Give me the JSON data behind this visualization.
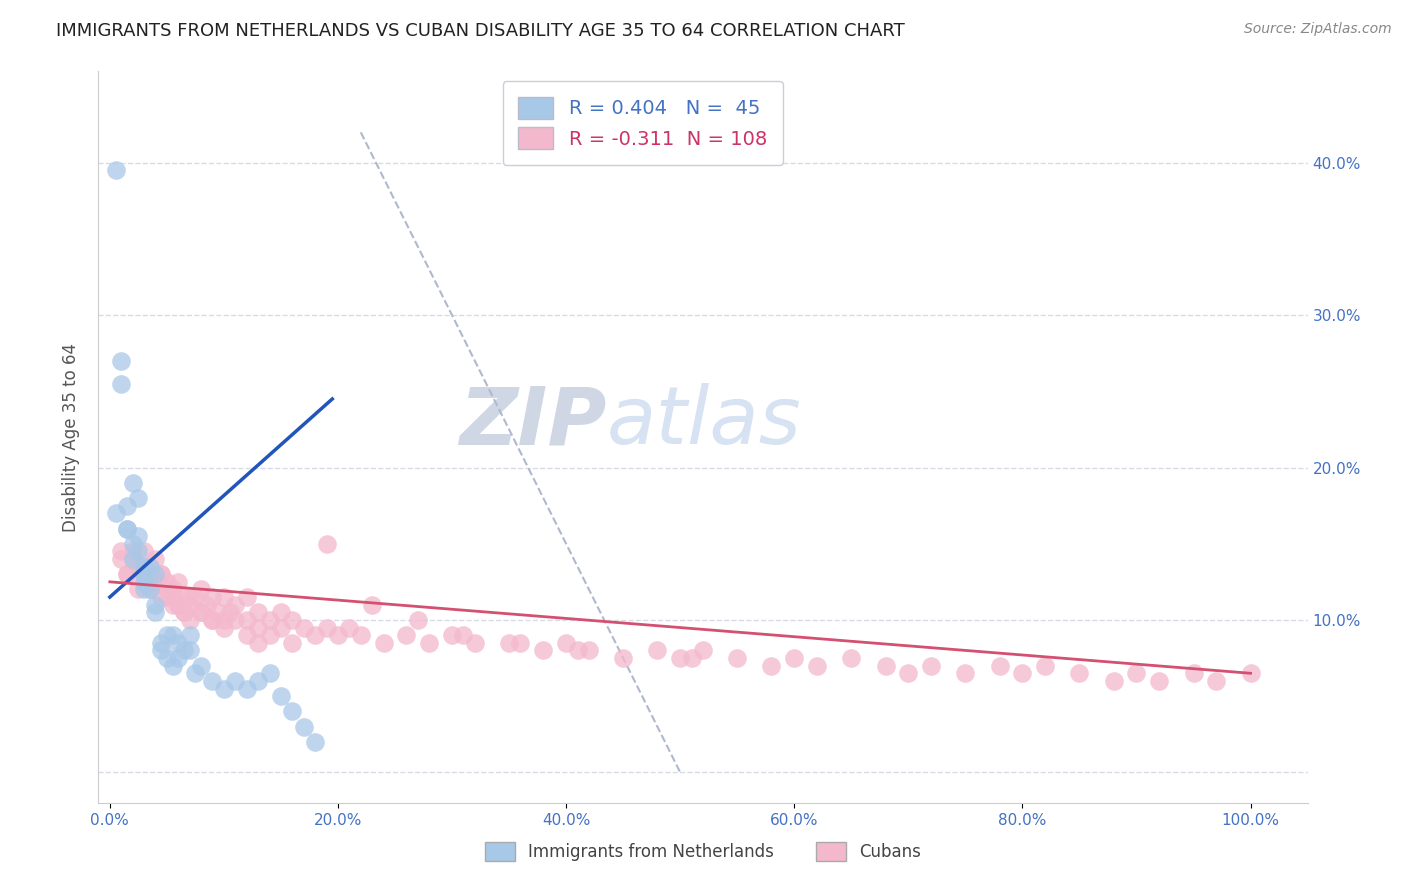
{
  "title": "IMMIGRANTS FROM NETHERLANDS VS CUBAN DISABILITY AGE 35 TO 64 CORRELATION CHART",
  "source_text": "Source: ZipAtlas.com",
  "ylabel_text": "Disability Age 35 to 64",
  "x_ticks": [
    0.0,
    0.2,
    0.4,
    0.6,
    0.8,
    1.0
  ],
  "x_tick_labels": [
    "0.0%",
    "20.0%",
    "40.0%",
    "60.0%",
    "80.0%",
    "100.0%"
  ],
  "y_ticks": [
    0.0,
    0.1,
    0.2,
    0.3,
    0.4
  ],
  "y_tick_labels_right": [
    "",
    "10.0%",
    "20.0%",
    "30.0%",
    "40.0%"
  ],
  "xlim": [
    -0.01,
    1.05
  ],
  "ylim": [
    -0.02,
    0.46
  ],
  "R_blue": 0.404,
  "N_blue": 45,
  "R_pink": -0.311,
  "N_pink": 108,
  "legend_label_blue": "Immigrants from Netherlands",
  "legend_label_pink": "Cubans",
  "watermark_zip": "ZIP",
  "watermark_atlas": "atlas",
  "title_color": "#222222",
  "title_fontsize": 13,
  "source_fontsize": 10,
  "tick_label_color": "#4472c4",
  "blue_scatter_color": "#a8c8e8",
  "pink_scatter_color": "#f4b8cc",
  "blue_line_color": "#2255bb",
  "pink_line_color": "#d45070",
  "dashed_line_color": "#b0b8d0",
  "grid_color": "#d8dce8",
  "background_color": "#ffffff",
  "blue_scatter_x": [
    0.005,
    0.01,
    0.01,
    0.015,
    0.015,
    0.02,
    0.02,
    0.02,
    0.025,
    0.025,
    0.03,
    0.03,
    0.03,
    0.03,
    0.035,
    0.035,
    0.04,
    0.04,
    0.04,
    0.045,
    0.045,
    0.05,
    0.05,
    0.055,
    0.055,
    0.06,
    0.06,
    0.065,
    0.07,
    0.07,
    0.075,
    0.08,
    0.09,
    0.1,
    0.11,
    0.12,
    0.13,
    0.14,
    0.15,
    0.16,
    0.17,
    0.18,
    0.005,
    0.015,
    0.025
  ],
  "blue_scatter_y": [
    0.395,
    0.27,
    0.255,
    0.16,
    0.175,
    0.19,
    0.15,
    0.14,
    0.155,
    0.145,
    0.13,
    0.135,
    0.125,
    0.12,
    0.135,
    0.12,
    0.13,
    0.11,
    0.105,
    0.085,
    0.08,
    0.075,
    0.09,
    0.07,
    0.09,
    0.085,
    0.075,
    0.08,
    0.09,
    0.08,
    0.065,
    0.07,
    0.06,
    0.055,
    0.06,
    0.055,
    0.06,
    0.065,
    0.05,
    0.04,
    0.03,
    0.02,
    0.17,
    0.16,
    0.18
  ],
  "pink_scatter_x": [
    0.01,
    0.015,
    0.02,
    0.025,
    0.025,
    0.03,
    0.03,
    0.035,
    0.035,
    0.04,
    0.04,
    0.045,
    0.045,
    0.05,
    0.05,
    0.055,
    0.055,
    0.06,
    0.06,
    0.065,
    0.065,
    0.07,
    0.07,
    0.075,
    0.08,
    0.08,
    0.085,
    0.09,
    0.09,
    0.095,
    0.1,
    0.1,
    0.105,
    0.11,
    0.12,
    0.12,
    0.13,
    0.13,
    0.14,
    0.15,
    0.15,
    0.16,
    0.17,
    0.18,
    0.19,
    0.2,
    0.21,
    0.22,
    0.24,
    0.26,
    0.28,
    0.3,
    0.32,
    0.35,
    0.38,
    0.4,
    0.42,
    0.45,
    0.48,
    0.5,
    0.52,
    0.55,
    0.58,
    0.6,
    0.62,
    0.65,
    0.68,
    0.7,
    0.72,
    0.75,
    0.78,
    0.8,
    0.82,
    0.85,
    0.88,
    0.9,
    0.92,
    0.95,
    0.97,
    1.0,
    0.01,
    0.015,
    0.02,
    0.025,
    0.03,
    0.035,
    0.04,
    0.045,
    0.05,
    0.055,
    0.06,
    0.065,
    0.07,
    0.08,
    0.09,
    0.1,
    0.11,
    0.12,
    0.13,
    0.14,
    0.16,
    0.19,
    0.23,
    0.27,
    0.31,
    0.36,
    0.41,
    0.51
  ],
  "pink_scatter_y": [
    0.145,
    0.13,
    0.14,
    0.135,
    0.12,
    0.145,
    0.13,
    0.125,
    0.12,
    0.14,
    0.125,
    0.13,
    0.115,
    0.125,
    0.115,
    0.12,
    0.11,
    0.125,
    0.11,
    0.115,
    0.105,
    0.115,
    0.1,
    0.115,
    0.12,
    0.105,
    0.11,
    0.115,
    0.1,
    0.105,
    0.115,
    0.1,
    0.105,
    0.11,
    0.115,
    0.1,
    0.105,
    0.095,
    0.1,
    0.105,
    0.095,
    0.1,
    0.095,
    0.09,
    0.095,
    0.09,
    0.095,
    0.09,
    0.085,
    0.09,
    0.085,
    0.09,
    0.085,
    0.085,
    0.08,
    0.085,
    0.08,
    0.075,
    0.08,
    0.075,
    0.08,
    0.075,
    0.07,
    0.075,
    0.07,
    0.075,
    0.07,
    0.065,
    0.07,
    0.065,
    0.07,
    0.065,
    0.07,
    0.065,
    0.06,
    0.065,
    0.06,
    0.065,
    0.06,
    0.065,
    0.14,
    0.13,
    0.145,
    0.135,
    0.125,
    0.135,
    0.125,
    0.13,
    0.12,
    0.115,
    0.11,
    0.105,
    0.11,
    0.105,
    0.1,
    0.095,
    0.1,
    0.09,
    0.085,
    0.09,
    0.085,
    0.15,
    0.11,
    0.1,
    0.09,
    0.085,
    0.08,
    0.075
  ],
  "blue_line_x0": 0.0,
  "blue_line_y0": 0.115,
  "blue_line_x1": 0.195,
  "blue_line_y1": 0.245,
  "pink_line_x0": 0.0,
  "pink_line_y0": 0.125,
  "pink_line_x1": 1.0,
  "pink_line_y1": 0.065,
  "dash_line_x0": 0.22,
  "dash_line_y0": 0.42,
  "dash_line_x1": 0.5,
  "dash_line_y1": 0.0
}
